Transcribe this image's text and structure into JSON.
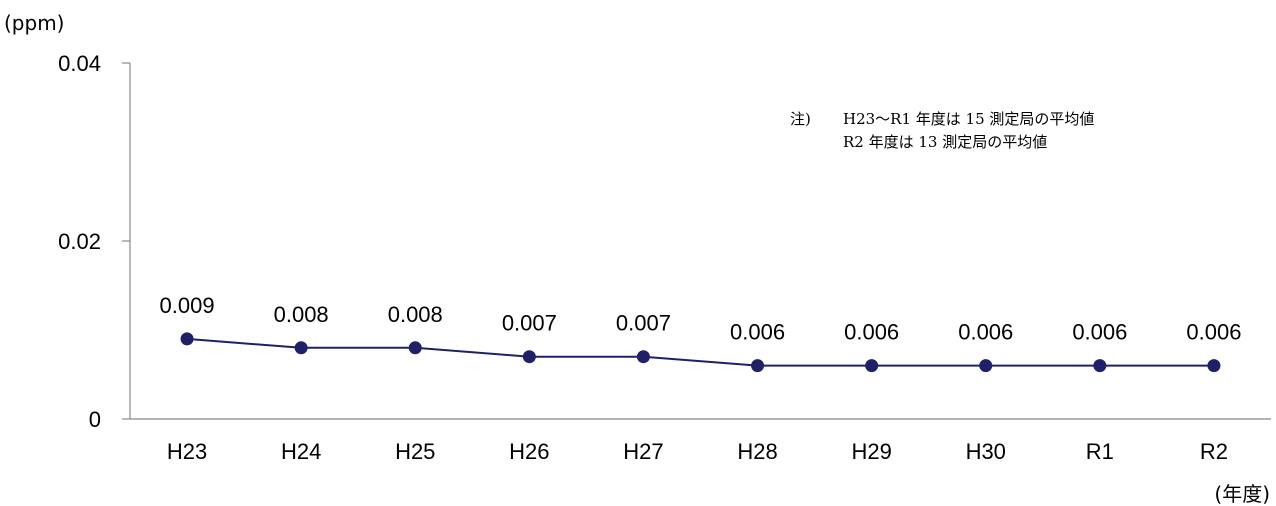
{
  "chart_data": {
    "type": "line",
    "ylabel": "(ppm)",
    "xlabel": "(年度)",
    "categories": [
      "H23",
      "H24",
      "H25",
      "H26",
      "H27",
      "H28",
      "H29",
      "H30",
      "R1",
      "R2"
    ],
    "series": [
      {
        "values": [
          0.009,
          0.008,
          0.008,
          0.007,
          0.007,
          0.006,
          0.006,
          0.006,
          0.006,
          0.006
        ],
        "labels": [
          "0.009",
          "0.008",
          "0.008",
          "0.007",
          "0.007",
          "0.006",
          "0.006",
          "0.006",
          "0.006",
          "0.006"
        ],
        "color": "#1f2168"
      }
    ],
    "yticks": [
      0,
      0.02,
      0.04
    ],
    "ytick_labels": [
      "0",
      "0.02",
      "0.04"
    ],
    "ylim": [
      0,
      0.04
    ],
    "grid": false,
    "legend": "none",
    "note": {
      "prefix": "注)",
      "lines": [
        "H23～R1 年度は 15 測定局の平均値",
        "R2 年度は 13 測定局の平均値"
      ]
    }
  }
}
